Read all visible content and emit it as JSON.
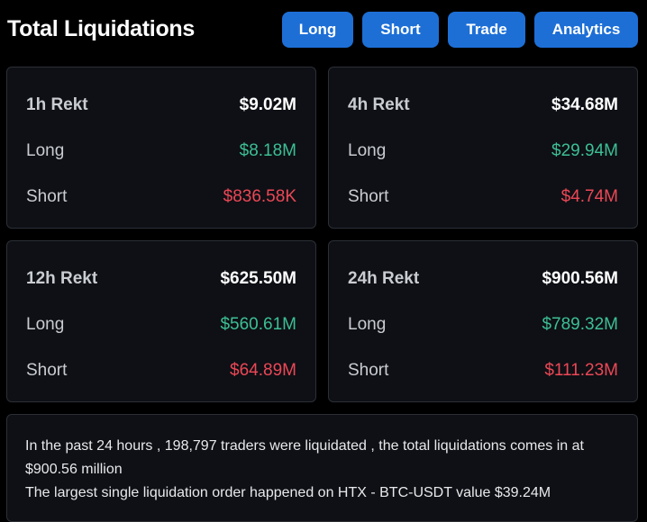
{
  "header": {
    "title": "Total Liquidations",
    "tabs": [
      {
        "label": "Long"
      },
      {
        "label": "Short"
      },
      {
        "label": "Trade"
      },
      {
        "label": "Analytics"
      }
    ]
  },
  "cards": [
    {
      "label": "1h Rekt",
      "total": "$9.02M",
      "long_label": "Long",
      "long": "$8.18M",
      "short_label": "Short",
      "short": "$836.58K"
    },
    {
      "label": "4h Rekt",
      "total": "$34.68M",
      "long_label": "Long",
      "long": "$29.94M",
      "short_label": "Short",
      "short": "$4.74M"
    },
    {
      "label": "12h Rekt",
      "total": "$625.50M",
      "long_label": "Long",
      "long": "$560.61M",
      "short_label": "Short",
      "short": "$64.89M"
    },
    {
      "label": "24h Rekt",
      "total": "$900.56M",
      "long_label": "Long",
      "long": "$789.32M",
      "short_label": "Short",
      "short": "$111.23M"
    }
  ],
  "summary": {
    "line1": "In the past 24 hours , 198,797 traders were liquidated , the total liquidations comes in at $900.56 million",
    "line2": "The largest single liquidation order happened on HTX - BTC-USDT value $39.24M"
  },
  "colors": {
    "accent": "#1d6fd6",
    "long": "#3dbf94",
    "short": "#ec4756",
    "card_bg": "#0e1015",
    "border": "#2b2f36"
  }
}
